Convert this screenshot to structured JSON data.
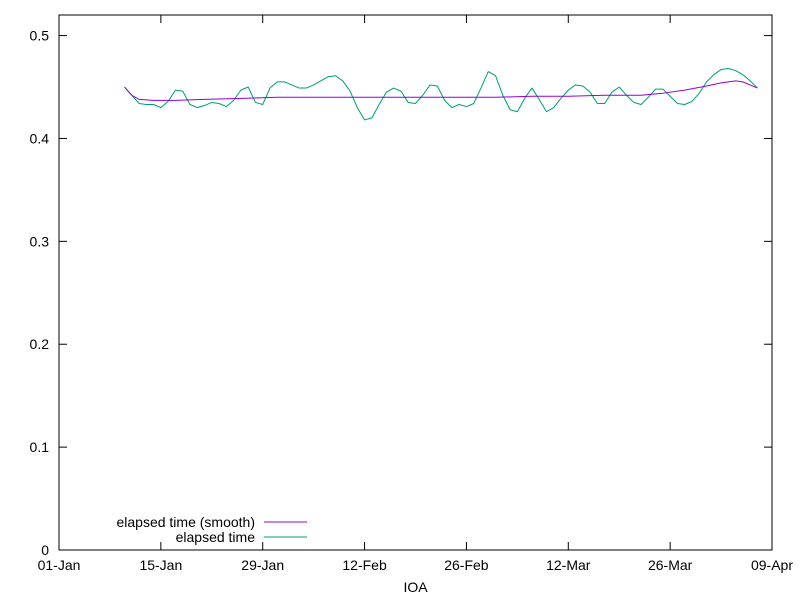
{
  "chart_data": {
    "type": "line",
    "title": "",
    "xlabel": "IOA",
    "ylabel": "",
    "x_type": "date",
    "xlim": [
      "2023-01-01",
      "2023-04-09"
    ],
    "ylim": [
      0,
      0.52
    ],
    "x_ticks": [
      {
        "date": "2023-01-01",
        "label": "01-Jan"
      },
      {
        "date": "2023-01-15",
        "label": "15-Jan"
      },
      {
        "date": "2023-01-29",
        "label": "29-Jan"
      },
      {
        "date": "2023-02-12",
        "label": "12-Feb"
      },
      {
        "date": "2023-02-26",
        "label": "26-Feb"
      },
      {
        "date": "2023-03-12",
        "label": "12-Mar"
      },
      {
        "date": "2023-03-26",
        "label": "26-Mar"
      },
      {
        "date": "2023-04-09",
        "label": "09-Apr"
      }
    ],
    "y_ticks": [
      {
        "value": 0,
        "label": "0"
      },
      {
        "value": 0.1,
        "label": "0.1"
      },
      {
        "value": 0.2,
        "label": "0.2"
      },
      {
        "value": 0.3,
        "label": "0.3"
      },
      {
        "value": 0.4,
        "label": "0.4"
      },
      {
        "value": 0.5,
        "label": "0.5"
      }
    ],
    "grid": false,
    "legend_position": "bottom-left",
    "series": [
      {
        "name": "elapsed time (smooth)",
        "color": "#9400d3",
        "points": [
          [
            "2023-01-10",
            0.45
          ],
          [
            "2023-01-11",
            0.442
          ],
          [
            "2023-01-12",
            0.438
          ],
          [
            "2023-01-14",
            0.437
          ],
          [
            "2023-01-17",
            0.437
          ],
          [
            "2023-01-21",
            0.438
          ],
          [
            "2023-01-26",
            0.439
          ],
          [
            "2023-01-31",
            0.44
          ],
          [
            "2023-02-05",
            0.44
          ],
          [
            "2023-02-10",
            0.44
          ],
          [
            "2023-02-15",
            0.44
          ],
          [
            "2023-02-20",
            0.44
          ],
          [
            "2023-02-25",
            0.44
          ],
          [
            "2023-03-02",
            0.44
          ],
          [
            "2023-03-07",
            0.441
          ],
          [
            "2023-03-12",
            0.441
          ],
          [
            "2023-03-17",
            0.442
          ],
          [
            "2023-03-22",
            0.442
          ],
          [
            "2023-03-25",
            0.444
          ],
          [
            "2023-03-28",
            0.447
          ],
          [
            "2023-03-31",
            0.451
          ],
          [
            "2023-04-02",
            0.454
          ],
          [
            "2023-04-04",
            0.456
          ],
          [
            "2023-04-05",
            0.455
          ],
          [
            "2023-04-06",
            0.452
          ],
          [
            "2023-04-07",
            0.449
          ]
        ]
      },
      {
        "name": "elapsed time",
        "color": "#009e73",
        "points": [
          [
            "2023-01-10",
            0.45
          ],
          [
            "2023-01-11",
            0.442
          ],
          [
            "2023-01-12",
            0.434
          ],
          [
            "2023-01-13",
            0.433
          ],
          [
            "2023-01-14",
            0.433
          ],
          [
            "2023-01-15",
            0.43
          ],
          [
            "2023-01-16",
            0.436
          ],
          [
            "2023-01-17",
            0.447
          ],
          [
            "2023-01-18",
            0.446
          ],
          [
            "2023-01-19",
            0.433
          ],
          [
            "2023-01-20",
            0.43
          ],
          [
            "2023-01-21",
            0.432
          ],
          [
            "2023-01-22",
            0.435
          ],
          [
            "2023-01-23",
            0.434
          ],
          [
            "2023-01-24",
            0.431
          ],
          [
            "2023-01-25",
            0.437
          ],
          [
            "2023-01-26",
            0.447
          ],
          [
            "2023-01-27",
            0.45
          ],
          [
            "2023-01-28",
            0.435
          ],
          [
            "2023-01-29",
            0.433
          ],
          [
            "2023-01-30",
            0.449
          ],
          [
            "2023-01-31",
            0.455
          ],
          [
            "2023-02-01",
            0.455
          ],
          [
            "2023-02-02",
            0.452
          ],
          [
            "2023-02-03",
            0.449
          ],
          [
            "2023-02-04",
            0.449
          ],
          [
            "2023-02-05",
            0.452
          ],
          [
            "2023-02-06",
            0.456
          ],
          [
            "2023-02-07",
            0.46
          ],
          [
            "2023-02-08",
            0.461
          ],
          [
            "2023-02-09",
            0.456
          ],
          [
            "2023-02-10",
            0.446
          ],
          [
            "2023-02-11",
            0.43
          ],
          [
            "2023-02-12",
            0.418
          ],
          [
            "2023-02-13",
            0.42
          ],
          [
            "2023-02-14",
            0.433
          ],
          [
            "2023-02-15",
            0.445
          ],
          [
            "2023-02-16",
            0.449
          ],
          [
            "2023-02-17",
            0.446
          ],
          [
            "2023-02-18",
            0.435
          ],
          [
            "2023-02-19",
            0.434
          ],
          [
            "2023-02-20",
            0.442
          ],
          [
            "2023-02-21",
            0.452
          ],
          [
            "2023-02-22",
            0.451
          ],
          [
            "2023-02-23",
            0.437
          ],
          [
            "2023-02-24",
            0.43
          ],
          [
            "2023-02-25",
            0.433
          ],
          [
            "2023-02-26",
            0.431
          ],
          [
            "2023-02-27",
            0.434
          ],
          [
            "2023-02-28",
            0.449
          ],
          [
            "2023-03-01",
            0.465
          ],
          [
            "2023-03-02",
            0.461
          ],
          [
            "2023-03-03",
            0.442
          ],
          [
            "2023-03-04",
            0.428
          ],
          [
            "2023-03-05",
            0.426
          ],
          [
            "2023-03-06",
            0.439
          ],
          [
            "2023-03-07",
            0.449
          ],
          [
            "2023-03-08",
            0.438
          ],
          [
            "2023-03-09",
            0.426
          ],
          [
            "2023-03-10",
            0.43
          ],
          [
            "2023-03-11",
            0.439
          ],
          [
            "2023-03-12",
            0.447
          ],
          [
            "2023-03-13",
            0.452
          ],
          [
            "2023-03-14",
            0.451
          ],
          [
            "2023-03-15",
            0.445
          ],
          [
            "2023-03-16",
            0.434
          ],
          [
            "2023-03-17",
            0.434
          ],
          [
            "2023-03-18",
            0.445
          ],
          [
            "2023-03-19",
            0.45
          ],
          [
            "2023-03-20",
            0.442
          ],
          [
            "2023-03-21",
            0.435
          ],
          [
            "2023-03-22",
            0.433
          ],
          [
            "2023-03-23",
            0.44
          ],
          [
            "2023-03-24",
            0.448
          ],
          [
            "2023-03-25",
            0.448
          ],
          [
            "2023-03-26",
            0.441
          ],
          [
            "2023-03-27",
            0.434
          ],
          [
            "2023-03-28",
            0.433
          ],
          [
            "2023-03-29",
            0.436
          ],
          [
            "2023-03-30",
            0.444
          ],
          [
            "2023-03-31",
            0.455
          ],
          [
            "2023-04-01",
            0.462
          ],
          [
            "2023-04-02",
            0.467
          ],
          [
            "2023-04-03",
            0.468
          ],
          [
            "2023-04-04",
            0.466
          ],
          [
            "2023-04-05",
            0.462
          ],
          [
            "2023-04-06",
            0.456
          ],
          [
            "2023-04-07",
            0.449
          ]
        ]
      }
    ]
  }
}
